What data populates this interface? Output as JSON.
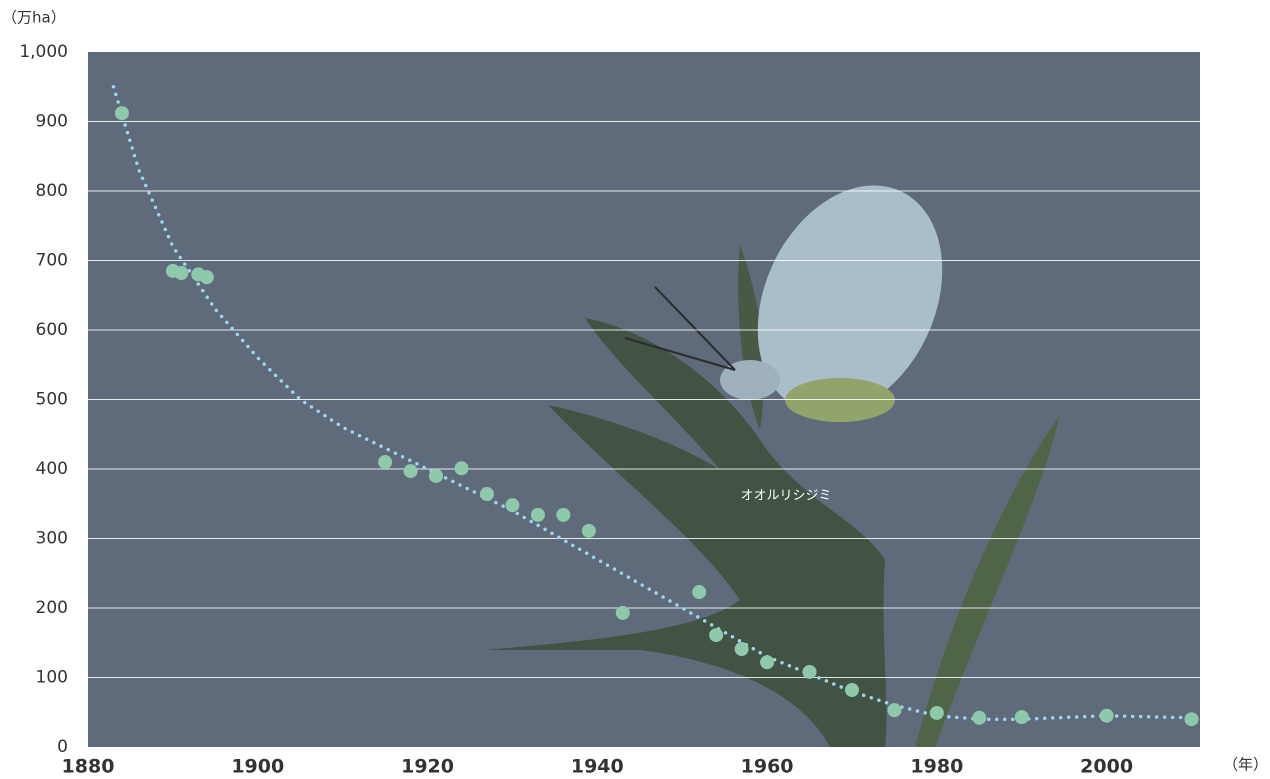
{
  "chart_data": {
    "type": "scatter",
    "y_label": "（万ha）",
    "x_label": "（年）",
    "annotation": "オオルリシジミ",
    "xlim": [
      1880,
      2011
    ],
    "xticks": [
      1880,
      1900,
      1920,
      1940,
      1960,
      1980,
      2000
    ],
    "ylim": [
      0,
      1000
    ],
    "yticks": [
      0,
      100,
      200,
      300,
      400,
      500,
      600,
      700,
      800,
      900,
      {
        "value": 1000,
        "label": "1,000"
      }
    ],
    "grid": true,
    "points": {
      "color": "#8fc9ab",
      "x": [
        1884,
        1890,
        1891,
        1893,
        1894,
        1915,
        1918,
        1921,
        1924,
        1927,
        1930,
        1933,
        1936,
        1939,
        1943,
        1952,
        1954,
        1957,
        1960,
        1965,
        1970,
        1975,
        1980,
        1985,
        1990,
        2000,
        2010
      ],
      "values": [
        912,
        685,
        682,
        680,
        676,
        410,
        397,
        390,
        401,
        364,
        348,
        334,
        334,
        311,
        193,
        223,
        161,
        141,
        122,
        108,
        82,
        53,
        49,
        42,
        43,
        45,
        40
      ]
    },
    "trend": {
      "color": "#9dd6f2",
      "x": [
        1883,
        1886,
        1890,
        1895,
        1900,
        1905,
        1910,
        1920,
        1930,
        1940,
        1950,
        1960,
        1970,
        1975,
        1980,
        1985,
        1990,
        2000,
        2010
      ],
      "values": [
        950,
        830,
        720,
        630,
        560,
        500,
        460,
        400,
        340,
        270,
        200,
        130,
        80,
        60,
        45,
        40,
        40,
        45,
        42
      ]
    }
  }
}
